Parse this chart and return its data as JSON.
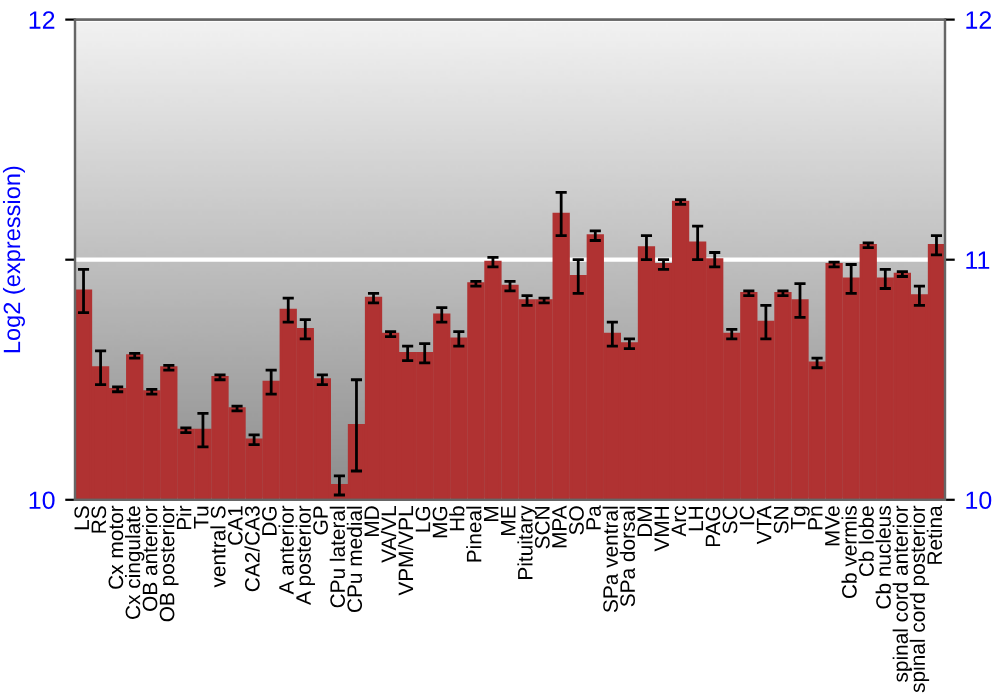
{
  "chart_data": {
    "type": "bar",
    "ylabel": "Log2 (expression)",
    "categories": [
      "LS",
      "RS",
      "Cx motor",
      "Cx cingulate",
      "OB anterior",
      "OB posterior",
      "Pir",
      "Tu",
      "ventral S",
      "CA1",
      "CA2/CA3",
      "DG",
      "A anterior",
      "A posterior",
      "GP",
      "CPu lateral",
      "CPu medial",
      "MD",
      "VA/VL",
      "VPM/VPL",
      "LG",
      "MG",
      "Hb",
      "Pineal",
      "M",
      "ME",
      "Pituitary",
      "SCN",
      "MPA",
      "SO",
      "Pa",
      "SPa ventral",
      "SPa dorsal",
      "DM",
      "VMH",
      "Arc",
      "LH",
      "PAG",
      "SC",
      "IC",
      "VTA",
      "SN",
      "Tg",
      "Pn",
      "MVe",
      "Cb vermis",
      "Cb lobe",
      "Cb nucleus",
      "spinal cord anterior",
      "spinal cord posterior",
      "Retina"
    ],
    "series": [
      {
        "color": "#b03232",
        "values": [
          10.87,
          10.55,
          10.46,
          10.6,
          10.45,
          10.55,
          10.29,
          10.29,
          10.51,
          10.38,
          10.25,
          10.49,
          10.79,
          10.71,
          10.5,
          10.06,
          10.31,
          10.84,
          10.69,
          10.61,
          10.61,
          10.77,
          10.67,
          10.9,
          10.99,
          10.89,
          10.83,
          10.83,
          11.19,
          10.93,
          11.1,
          10.69,
          10.65,
          11.05,
          10.98,
          11.24,
          11.07,
          11.0,
          10.69,
          10.86,
          10.74,
          10.86,
          10.83,
          10.57,
          10.98,
          10.92,
          11.06,
          10.92,
          10.94,
          10.85,
          11.06
        ],
        "errors": [
          0.09,
          0.07,
          0.01,
          0.01,
          0.01,
          0.01,
          0.01,
          0.07,
          0.01,
          0.01,
          0.02,
          0.05,
          0.05,
          0.04,
          0.02,
          0.04,
          0.19,
          0.02,
          0.01,
          0.03,
          0.04,
          0.03,
          0.03,
          0.01,
          0.02,
          0.02,
          0.02,
          0.01,
          0.09,
          0.07,
          0.02,
          0.05,
          0.02,
          0.05,
          0.02,
          0.01,
          0.07,
          0.03,
          0.02,
          0.01,
          0.07,
          0.01,
          0.07,
          0.02,
          0.01,
          0.06,
          0.01,
          0.04,
          0.01,
          0.04,
          0.04
        ]
      }
    ],
    "ylim": [
      10,
      12
    ],
    "yticks": [
      10,
      {
        "value": 11,
        "label": null
      },
      12
    ],
    "y2lim": [
      10,
      12
    ],
    "y2ticks": [
      10,
      11,
      12
    ],
    "grid": "y"
  }
}
